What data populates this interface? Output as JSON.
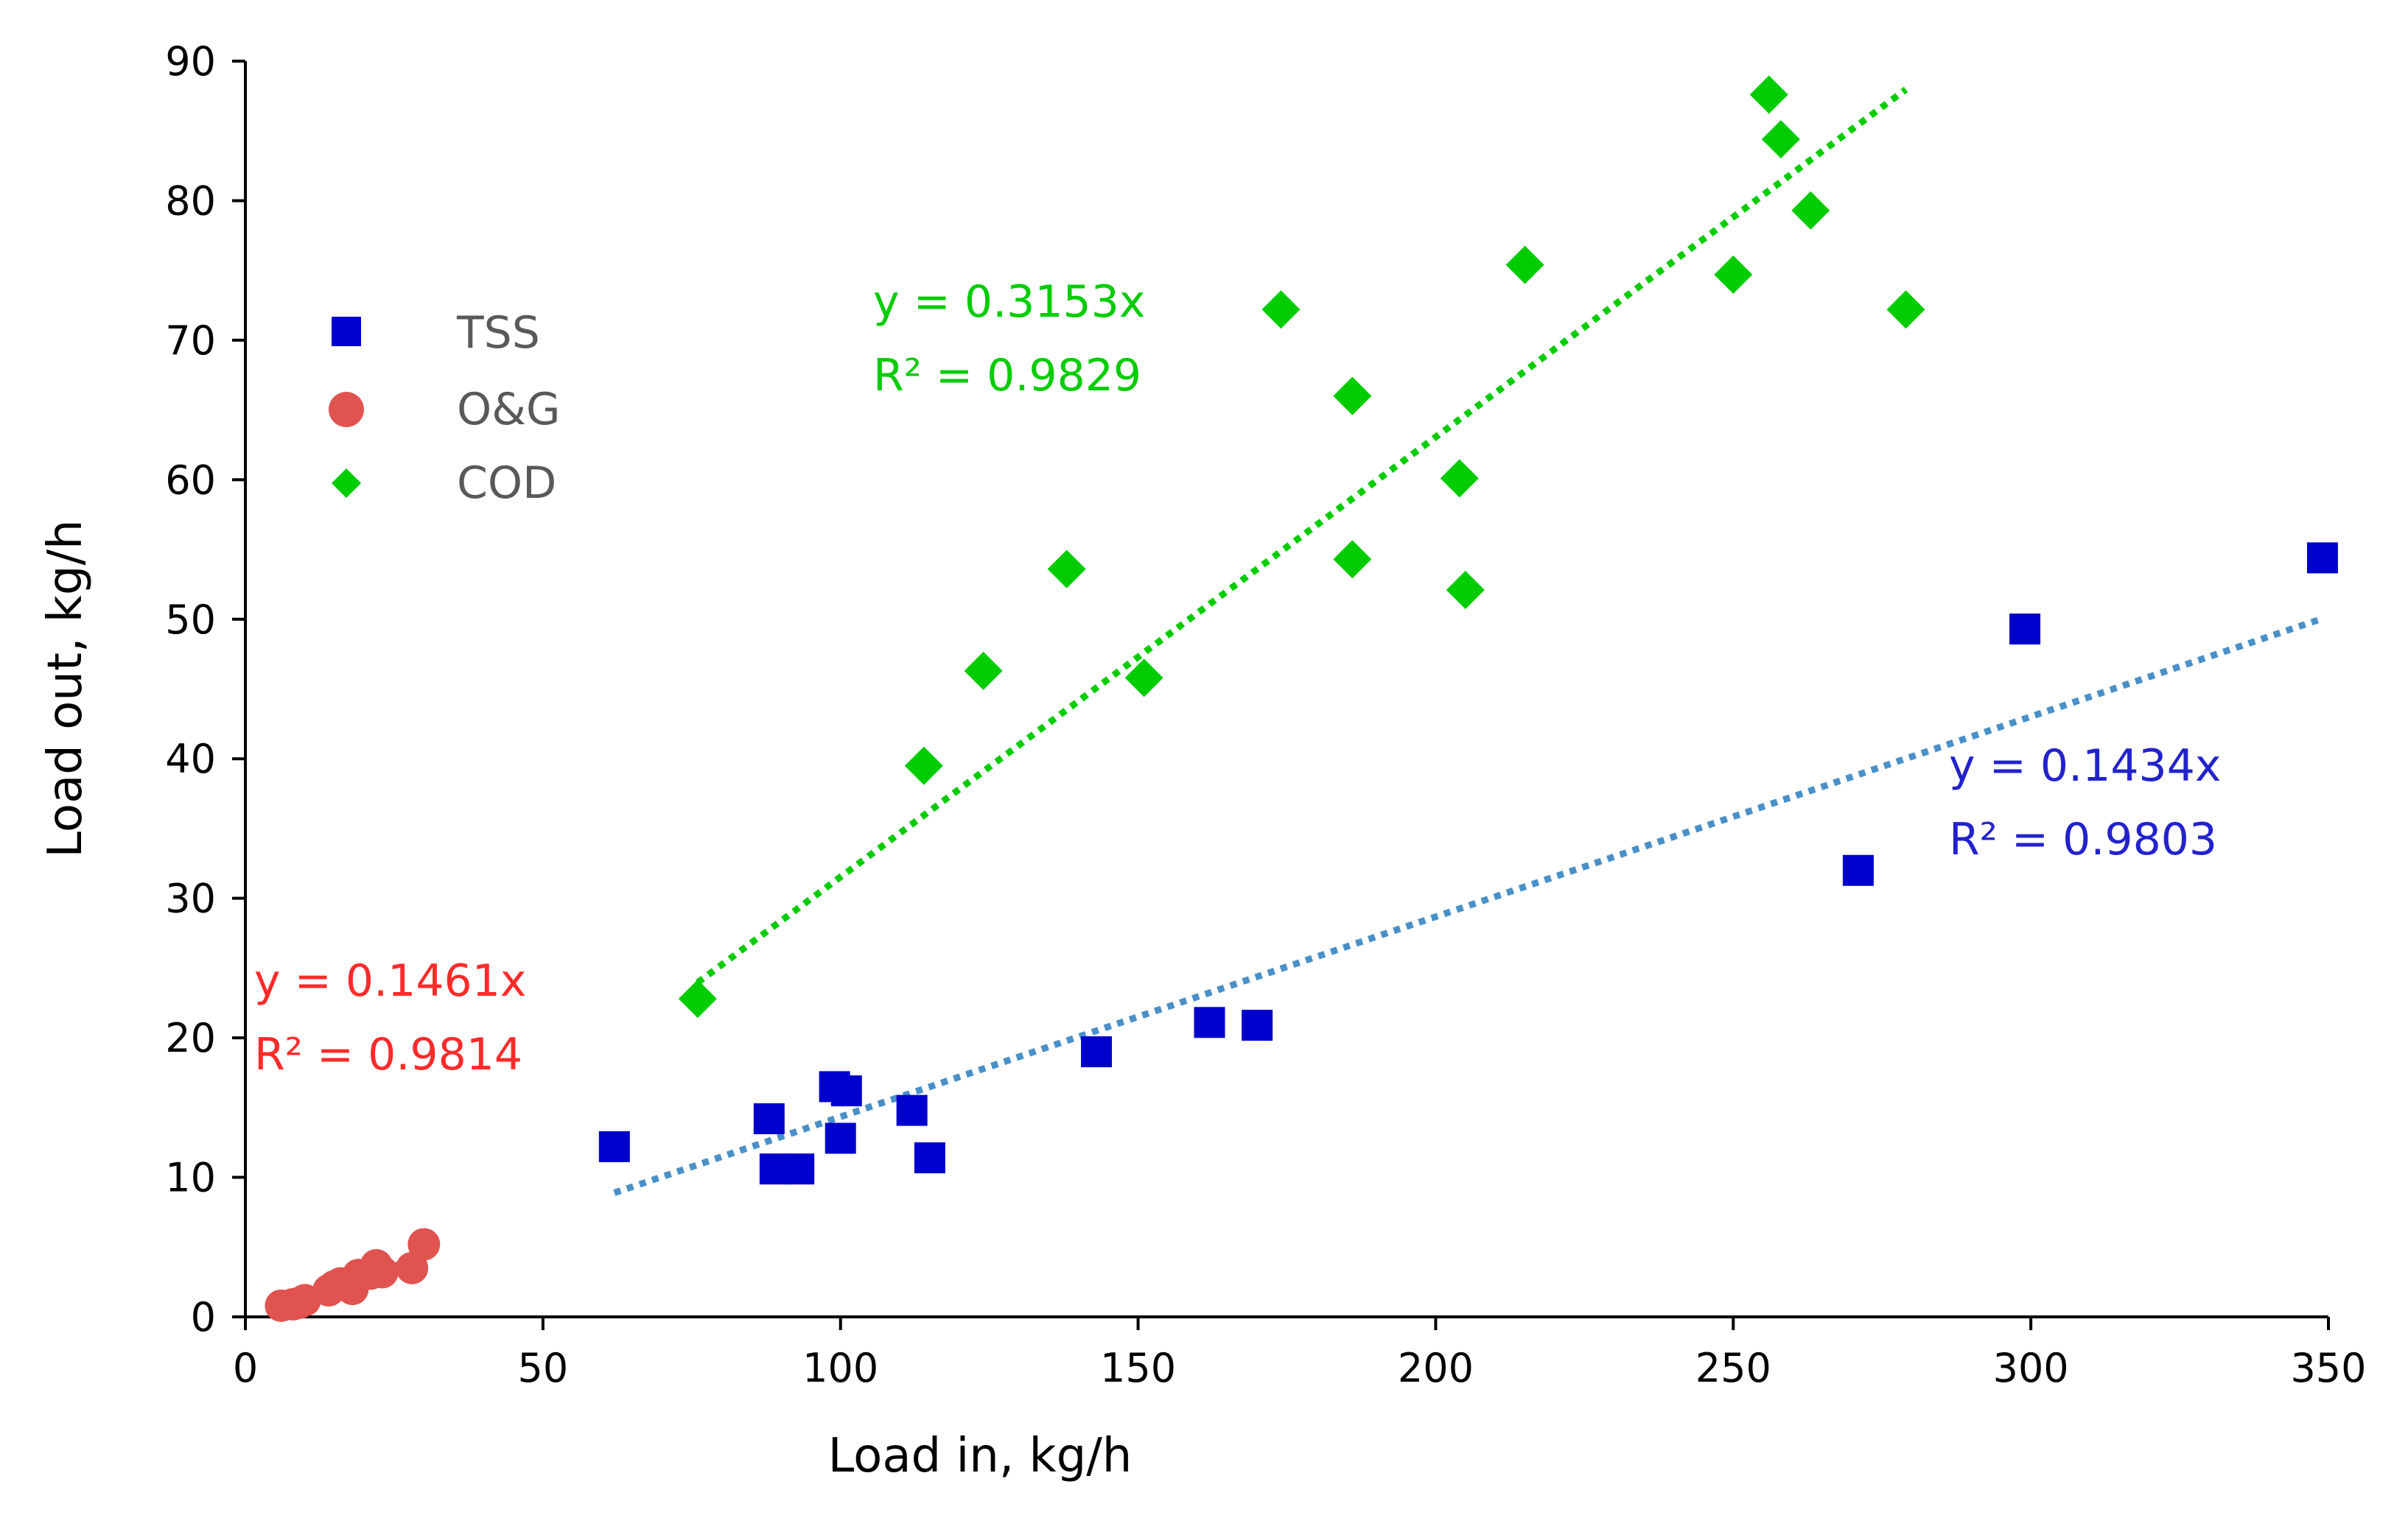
{
  "chart_data": {
    "type": "scatter",
    "xlabel": "Load in, kg/h",
    "ylabel": "Load out, kg/h",
    "xlim": [
      0,
      350
    ],
    "ylim": [
      0,
      90
    ],
    "xticks": [
      0,
      50,
      100,
      150,
      200,
      250,
      300,
      350
    ],
    "yticks": [
      0,
      10,
      20,
      30,
      40,
      50,
      60,
      70,
      80,
      90
    ],
    "grid": false,
    "legend_position": "upper-left",
    "series": [
      {
        "name": "TSS",
        "marker": "square",
        "color": "#0000CC",
        "trend_color": "#4A90C8",
        "slope": 0.1434,
        "equation": "y = 0.1434x",
        "r2": "R² = 0.9803",
        "points": [
          [
            62,
            12.2
          ],
          [
            88,
            14.2
          ],
          [
            89,
            10.6
          ],
          [
            93,
            10.6
          ],
          [
            99,
            16.5
          ],
          [
            101,
            16.2
          ],
          [
            100,
            12.8
          ],
          [
            112,
            14.8
          ],
          [
            115,
            11.4
          ],
          [
            143,
            19.0
          ],
          [
            162,
            21.1
          ],
          [
            170,
            20.9
          ],
          [
            271,
            32.0
          ],
          [
            299,
            49.3
          ],
          [
            349,
            54.4
          ]
        ]
      },
      {
        "name": "O&G",
        "marker": "circle",
        "color": "#E0534F",
        "trend_color": "#E0534F",
        "slope": 0.1461,
        "equation": "y = 0.1461x",
        "r2": "R² = 0.9814",
        "points": [
          [
            6,
            0.8
          ],
          [
            8,
            0.9
          ],
          [
            9,
            1.0
          ],
          [
            10,
            1.2
          ],
          [
            14,
            1.9
          ],
          [
            15,
            2.2
          ],
          [
            16,
            2.4
          ],
          [
            18,
            2.0
          ],
          [
            19,
            3.0
          ],
          [
            21,
            3.1
          ],
          [
            22,
            3.7
          ],
          [
            23,
            3.2
          ],
          [
            28,
            3.5
          ],
          [
            30,
            5.2
          ]
        ]
      },
      {
        "name": "COD",
        "marker": "diamond",
        "color": "#00CC00",
        "trend_color": "#00CC00",
        "slope": 0.3153,
        "equation": "y = 0.3153x",
        "r2": "R² = 0.9829",
        "points": [
          [
            76,
            22.8
          ],
          [
            114,
            39.5
          ],
          [
            124,
            46.3
          ],
          [
            138,
            53.6
          ],
          [
            151,
            45.8
          ],
          [
            174,
            72.2
          ],
          [
            186,
            66.0
          ],
          [
            186,
            54.3
          ],
          [
            204,
            60.1
          ],
          [
            205,
            52.1
          ],
          [
            215,
            75.4
          ],
          [
            250,
            74.7
          ],
          [
            256,
            87.6
          ],
          [
            258,
            84.4
          ],
          [
            263,
            79.3
          ],
          [
            279,
            72.2
          ]
        ]
      }
    ]
  }
}
